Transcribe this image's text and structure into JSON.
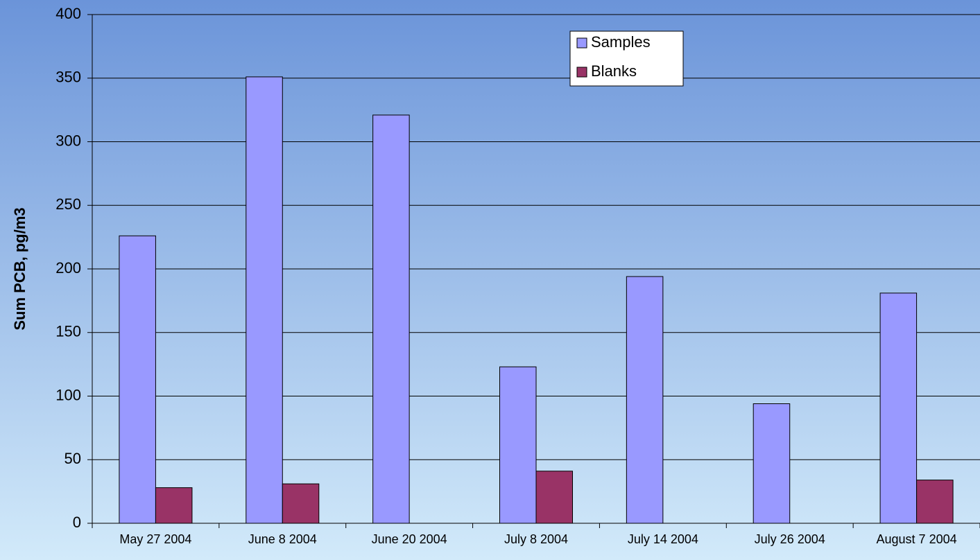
{
  "chart_data": {
    "type": "bar",
    "y_label": "Sum PCB, pg/m3",
    "categories": [
      "May 27 2004",
      "June 8 2004",
      "June 20 2004",
      "July 8 2004",
      "July 14 2004",
      "July 26 2004",
      "August 7 2004"
    ],
    "series": [
      {
        "name": "Samples",
        "color": "#9999ff",
        "values": [
          226,
          351,
          321,
          123,
          194,
          94,
          181
        ]
      },
      {
        "name": "Blanks",
        "color": "#993366",
        "values": [
          28,
          31,
          null,
          41,
          null,
          null,
          34
        ]
      }
    ],
    "ylim": [
      0,
      400
    ],
    "yticks": [
      0,
      50,
      100,
      150,
      200,
      250,
      300,
      350,
      400
    ],
    "grid": true
  }
}
